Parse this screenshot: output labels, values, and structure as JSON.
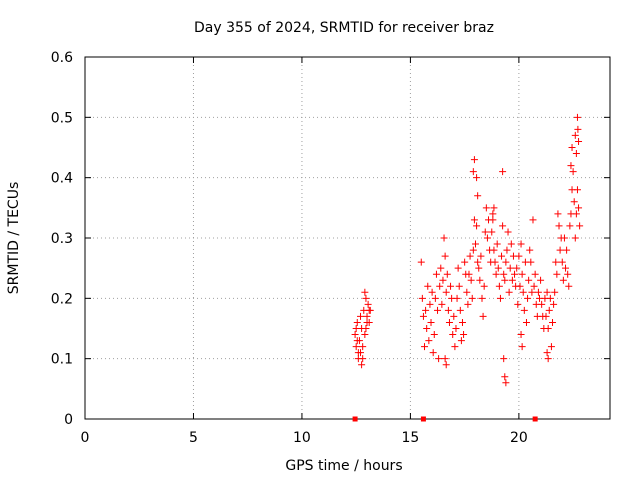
{
  "chart_data": {
    "type": "scatter",
    "title": "Day 355 of 2024, SRMTID for receiver braz",
    "xlabel": "GPS time / hours",
    "ylabel": "SRMTID / TECUs",
    "xlim": [
      0,
      24.2
    ],
    "ylim": [
      0,
      0.6
    ],
    "xticks": [
      0,
      5,
      10,
      15,
      20
    ],
    "xtick_labels": [
      "0",
      "5",
      "10",
      "15",
      "20"
    ],
    "yticks": [
      0,
      0.1,
      0.2,
      0.3,
      0.4,
      0.5,
      0.6
    ],
    "ytick_labels": [
      "0",
      "0.1",
      "0.2",
      "0.3",
      "0.4",
      "0.5",
      "0.6"
    ],
    "grid": true,
    "marker": "plus",
    "color": "#ff0000",
    "zero_markers_x": [
      12.45,
      15.6,
      20.75
    ],
    "series": [
      {
        "name": "SRMTID",
        "x": [
          12.45,
          12.5,
          12.55,
          12.6,
          12.65,
          12.7,
          12.75,
          12.8,
          12.85,
          12.9,
          12.95,
          13.0,
          13.05,
          13.1,
          13.15,
          12.5,
          12.6,
          12.7,
          12.8,
          12.9,
          13.0,
          13.1,
          12.55,
          12.75,
          12.95,
          15.5,
          15.55,
          15.6,
          15.65,
          15.7,
          15.75,
          15.8,
          15.85,
          15.9,
          15.95,
          16.0,
          16.05,
          16.1,
          16.15,
          16.2,
          16.25,
          16.3,
          16.35,
          16.4,
          16.45,
          16.5,
          16.55,
          16.6,
          16.65,
          16.7,
          16.75,
          16.8,
          16.85,
          16.9,
          16.95,
          17.0,
          17.05,
          17.1,
          17.15,
          17.2,
          17.25,
          17.3,
          17.35,
          17.4,
          17.45,
          17.5,
          17.55,
          17.6,
          17.65,
          17.7,
          17.75,
          17.8,
          17.85,
          17.9,
          17.95,
          18.0,
          18.05,
          18.1,
          18.15,
          18.2,
          18.25,
          18.3,
          18.35,
          18.4,
          18.45,
          18.5,
          18.55,
          18.6,
          18.65,
          18.7,
          18.75,
          18.8,
          18.85,
          18.9,
          18.95,
          19.0,
          19.05,
          19.1,
          19.15,
          19.2,
          19.25,
          19.3,
          19.35,
          19.4,
          19.45,
          19.5,
          19.55,
          19.6,
          19.65,
          19.7,
          19.75,
          19.8,
          19.85,
          19.9,
          19.95,
          20.0,
          20.05,
          20.1,
          20.15,
          20.2,
          20.25,
          20.3,
          20.35,
          20.4,
          20.45,
          20.5,
          20.55,
          20.6,
          20.65,
          20.7,
          20.75,
          20.8,
          20.85,
          20.9,
          20.95,
          21.0,
          21.05,
          21.1,
          21.15,
          21.2,
          21.25,
          21.3,
          21.35,
          21.4,
          21.45,
          21.5,
          21.55,
          21.6,
          21.65,
          21.7,
          21.75,
          21.8,
          21.85,
          21.9,
          21.95,
          22.0,
          22.05,
          22.1,
          22.15,
          22.2,
          22.25,
          22.3,
          22.35,
          22.4,
          22.45,
          22.5,
          22.55,
          22.6,
          22.65,
          22.7,
          22.75,
          22.8,
          16.6,
          16.65,
          17.9,
          17.95,
          18.05,
          18.1,
          18.8,
          18.85,
          19.25,
          19.3,
          19.35,
          19.4,
          20.1,
          20.15,
          21.3,
          21.35,
          22.4,
          22.45,
          22.6,
          22.65,
          22.7,
          22.72,
          22.75
        ],
        "y": [
          0.14,
          0.12,
          0.16,
          0.1,
          0.13,
          0.11,
          0.15,
          0.1,
          0.18,
          0.14,
          0.2,
          0.17,
          0.19,
          0.16,
          0.18,
          0.15,
          0.11,
          0.17,
          0.12,
          0.21,
          0.16,
          0.18,
          0.13,
          0.09,
          0.15,
          0.26,
          0.2,
          0.17,
          0.12,
          0.18,
          0.15,
          0.22,
          0.13,
          0.19,
          0.16,
          0.21,
          0.11,
          0.14,
          0.2,
          0.24,
          0.18,
          0.1,
          0.22,
          0.25,
          0.19,
          0.23,
          0.3,
          0.27,
          0.21,
          0.24,
          0.18,
          0.16,
          0.22,
          0.2,
          0.14,
          0.17,
          0.12,
          0.15,
          0.2,
          0.25,
          0.22,
          0.18,
          0.13,
          0.16,
          0.14,
          0.26,
          0.24,
          0.21,
          0.19,
          0.24,
          0.27,
          0.23,
          0.2,
          0.28,
          0.33,
          0.29,
          0.32,
          0.26,
          0.25,
          0.23,
          0.27,
          0.2,
          0.17,
          0.22,
          0.31,
          0.35,
          0.3,
          0.33,
          0.28,
          0.26,
          0.31,
          0.34,
          0.28,
          0.26,
          0.24,
          0.29,
          0.25,
          0.22,
          0.2,
          0.27,
          0.32,
          0.24,
          0.23,
          0.26,
          0.28,
          0.31,
          0.21,
          0.25,
          0.29,
          0.23,
          0.27,
          0.24,
          0.22,
          0.25,
          0.19,
          0.27,
          0.22,
          0.29,
          0.24,
          0.21,
          0.18,
          0.26,
          0.16,
          0.2,
          0.23,
          0.28,
          0.26,
          0.21,
          0.33,
          0.22,
          0.24,
          0.19,
          0.17,
          0.21,
          0.2,
          0.23,
          0.19,
          0.17,
          0.15,
          0.2,
          0.17,
          0.21,
          0.15,
          0.18,
          0.2,
          0.12,
          0.16,
          0.19,
          0.21,
          0.26,
          0.24,
          0.34,
          0.32,
          0.28,
          0.3,
          0.26,
          0.23,
          0.3,
          0.25,
          0.28,
          0.24,
          0.22,
          0.32,
          0.34,
          0.38,
          0.41,
          0.36,
          0.3,
          0.34,
          0.38,
          0.35,
          0.32,
          0.1,
          0.09,
          0.41,
          0.43,
          0.4,
          0.37,
          0.33,
          0.35,
          0.41,
          0.1,
          0.07,
          0.06,
          0.14,
          0.12,
          0.11,
          0.1,
          0.42,
          0.45,
          0.47,
          0.44,
          0.5,
          0.48,
          0.46
        ]
      }
    ]
  }
}
